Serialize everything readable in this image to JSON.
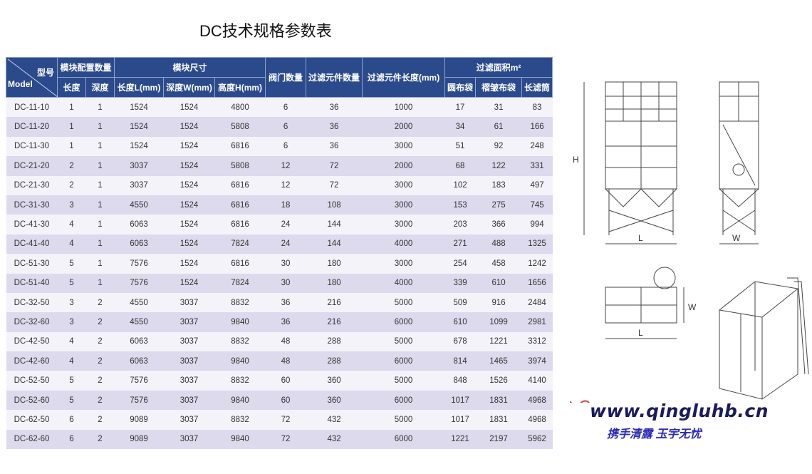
{
  "title": "DC技术规格参数表",
  "header": {
    "model_cn": "型号",
    "model_en": "Model",
    "module_config": "模块配置数量",
    "length": "长度",
    "depth": "深度",
    "module_size": "模块尺寸",
    "size_l": "长度L(mm)",
    "size_w": "深度W(mm)",
    "size_h": "高度H(mm)",
    "valves": "阀门数量",
    "filter_count": "过滤元件数量",
    "filter_length": "过滤元件长度(mm)",
    "filter_area": "过滤面积m²",
    "round_bag": "圆布袋",
    "pleated_bag": "褶皱布袋",
    "cartridge": "长滤筒"
  },
  "rows": [
    [
      "DC-11-10",
      "1",
      "1",
      "1524",
      "1524",
      "4800",
      "6",
      "36",
      "1000",
      "17",
      "31",
      "83"
    ],
    [
      "DC-11-20",
      "1",
      "1",
      "1524",
      "1524",
      "5808",
      "6",
      "36",
      "2000",
      "34",
      "61",
      "166"
    ],
    [
      "DC-11-30",
      "1",
      "1",
      "1524",
      "1524",
      "6816",
      "6",
      "36",
      "3000",
      "51",
      "92",
      "248"
    ],
    [
      "DC-21-20",
      "2",
      "1",
      "3037",
      "1524",
      "5808",
      "12",
      "72",
      "2000",
      "68",
      "122",
      "331"
    ],
    [
      "DC-21-30",
      "2",
      "1",
      "3037",
      "1524",
      "6816",
      "12",
      "72",
      "3000",
      "102",
      "183",
      "497"
    ],
    [
      "DC-31-30",
      "3",
      "1",
      "4550",
      "1524",
      "6816",
      "18",
      "108",
      "3000",
      "153",
      "275",
      "745"
    ],
    [
      "DC-41-30",
      "4",
      "1",
      "6063",
      "1524",
      "6816",
      "24",
      "144",
      "3000",
      "203",
      "366",
      "994"
    ],
    [
      "DC-41-40",
      "4",
      "1",
      "6063",
      "1524",
      "7824",
      "24",
      "144",
      "4000",
      "271",
      "488",
      "1325"
    ],
    [
      "DC-51-30",
      "5",
      "1",
      "7576",
      "1524",
      "6816",
      "30",
      "180",
      "3000",
      "254",
      "458",
      "1242"
    ],
    [
      "DC-51-40",
      "5",
      "1",
      "7576",
      "1524",
      "7824",
      "30",
      "180",
      "4000",
      "339",
      "610",
      "1656"
    ],
    [
      "DC-32-50",
      "3",
      "2",
      "4550",
      "3037",
      "8832",
      "36",
      "216",
      "5000",
      "509",
      "916",
      "2484"
    ],
    [
      "DC-32-60",
      "3",
      "2",
      "4550",
      "3037",
      "9840",
      "36",
      "216",
      "6000",
      "610",
      "1099",
      "2981"
    ],
    [
      "DC-42-50",
      "4",
      "2",
      "6063",
      "3037",
      "8832",
      "48",
      "288",
      "5000",
      "678",
      "1221",
      "3312"
    ],
    [
      "DC-42-60",
      "4",
      "2",
      "6063",
      "3037",
      "9840",
      "48",
      "288",
      "6000",
      "814",
      "1465",
      "3974"
    ],
    [
      "DC-52-50",
      "5",
      "2",
      "7576",
      "3037",
      "8832",
      "60",
      "360",
      "5000",
      "848",
      "1526",
      "4140"
    ],
    [
      "DC-52-60",
      "5",
      "2",
      "7576",
      "3037",
      "9840",
      "60",
      "360",
      "6000",
      "1017",
      "1831",
      "4968"
    ],
    [
      "DC-62-50",
      "6",
      "2",
      "9089",
      "3037",
      "8832",
      "72",
      "432",
      "5000",
      "1017",
      "1831",
      "4968"
    ],
    [
      "DC-62-60",
      "6",
      "2",
      "9089",
      "3037",
      "9840",
      "72",
      "432",
      "6000",
      "1221",
      "2197",
      "5962"
    ]
  ],
  "diagram_labels": {
    "front_h": "H",
    "front_l": "L",
    "side_w": "W",
    "top_w": "W",
    "top_l": "L"
  },
  "watermark": {
    "url": "www.qingluhb.cn",
    "slogan": "携手清露 玉宇无忧"
  },
  "colors": {
    "header_bg": "#2b4a8b",
    "row_light": "#f4f3f9",
    "row_dark": "#dcdaec",
    "watermark_url": "#1a1a5e",
    "watermark_slogan": "#2a2ab8",
    "bird": "#d94040"
  }
}
